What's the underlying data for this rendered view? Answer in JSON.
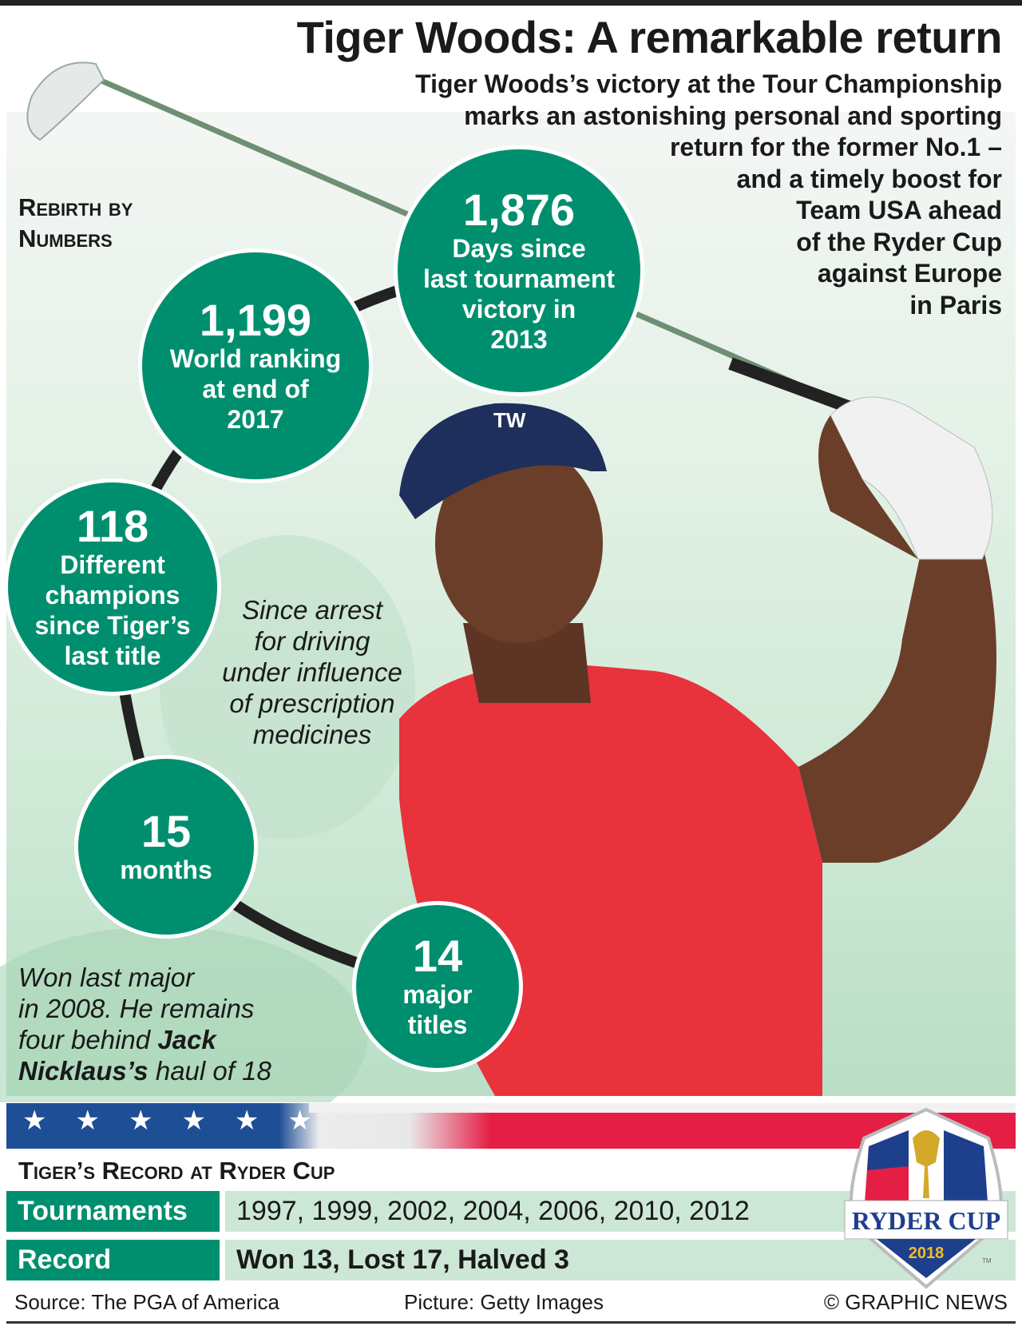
{
  "header": {
    "title": "Tiger Woods: A remarkable return",
    "subtitle_lines": [
      "Tiger Woods’s victory at the Tour Championship",
      "marks an astonishing personal and sporting",
      "return for the former No.1 –",
      "and a timely boost for",
      "Team USA ahead",
      "of the Ryder Cup",
      "against Europe",
      "in Paris"
    ]
  },
  "section": {
    "line1": "Rebirth by",
    "line2": "Numbers"
  },
  "stats": [
    {
      "number": "1,876",
      "label": [
        "Days since",
        "last tournament",
        "victory in",
        "2013"
      ]
    },
    {
      "number": "1,199",
      "label": [
        "World ranking",
        "at end of",
        "2017"
      ]
    },
    {
      "number": "118",
      "label": [
        "Different",
        "champions",
        "since Tiger’s",
        "last title"
      ]
    },
    {
      "number": "15",
      "label": [
        "months"
      ]
    },
    {
      "number": "14",
      "label": [
        "major",
        "titles"
      ]
    }
  ],
  "notes": {
    "arrest": [
      "Since arrest",
      "for driving",
      "under influence",
      "of prescription",
      "medicines"
    ],
    "major": {
      "l1": "Won last major",
      "l2": "in 2008. He remains",
      "l3a": "four behind ",
      "l3b": "Jack",
      "l4a": "Nicklaus’s",
      "l4b": " haul of 18"
    }
  },
  "record": {
    "title": "Tiger’s Record at Ryder Cup",
    "rows": [
      {
        "label": "Tournaments",
        "value": "1997, 1999, 2002, 2004, 2006, 2010, 2012"
      },
      {
        "label": "Record",
        "value": "Won 13, Lost 17, Halved 3"
      }
    ]
  },
  "logo": {
    "text": "RYDER CUP",
    "year": "2018",
    "tm": "TM"
  },
  "footer": {
    "source": "Source: The PGA of America",
    "picture": "Picture: Getty Images",
    "credit": "© GRAPHIC NEWS"
  },
  "colors": {
    "accent": "#008f6e",
    "light": "#cce7d6",
    "shirt": "#e8323c",
    "flag_red": "#e51e45",
    "flag_blue": "#1e4e96"
  }
}
